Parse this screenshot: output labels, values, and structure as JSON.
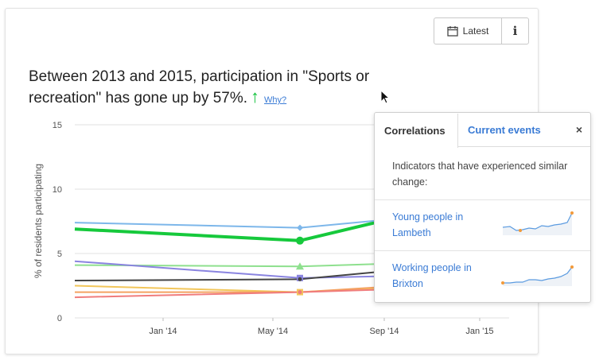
{
  "toolbar": {
    "latest_label": "Latest",
    "info_label": "i"
  },
  "headline": {
    "text": "Between 2013 and 2015, participation in \"Sports or recreation\" has gone up by 57%.",
    "why_link": "Why?"
  },
  "popover": {
    "tab_active": "Correlations",
    "tab_other": "Current events",
    "close": "×",
    "description": "Indicators that have experienced similar change:",
    "items": [
      {
        "label": "Young people in Lambeth"
      },
      {
        "label": "Working people in Brixton"
      }
    ]
  },
  "chart_data": {
    "type": "line",
    "ylabel": "% of residents participating",
    "ylim": [
      0,
      15
    ],
    "yticks": [
      "15",
      "10",
      "5",
      "0"
    ],
    "xticks": [
      "Jan '14",
      "May '14",
      "Sep '14",
      "Jan '15"
    ],
    "series": [
      {
        "name": "Sports or recreation",
        "color": "#16c93c",
        "x": [
          0,
          1,
          1.55
        ],
        "values": [
          6.9,
          6.0,
          8.3
        ]
      },
      {
        "name": "blue",
        "color": "#7db7ea",
        "x": [
          0,
          1,
          1.55
        ],
        "values": [
          7.4,
          7.0,
          7.9
        ]
      },
      {
        "name": "light-green",
        "color": "#8ee08e",
        "x": [
          0,
          1,
          1.55
        ],
        "values": [
          4.1,
          4.0,
          4.3
        ]
      },
      {
        "name": "purple",
        "color": "#8a84e0",
        "x": [
          0,
          1,
          1.55
        ],
        "values": [
          4.4,
          3.1,
          3.3
        ]
      },
      {
        "name": "dark",
        "color": "#444444",
        "x": [
          0,
          1,
          1.55
        ],
        "values": [
          2.9,
          3.0,
          3.9
        ]
      },
      {
        "name": "yellow",
        "color": "#f2c65a",
        "x": [
          0,
          1,
          1.55
        ],
        "values": [
          2.5,
          2.0,
          2.5
        ]
      },
      {
        "name": "orange",
        "color": "#f4a261",
        "x": [
          0,
          1,
          1.55
        ],
        "values": [
          2.0,
          2.0,
          2.6
        ]
      },
      {
        "name": "pink",
        "color": "#f07c7c",
        "x": [
          0,
          1,
          1.55
        ],
        "values": [
          1.6,
          2.0,
          2.3
        ]
      }
    ]
  }
}
